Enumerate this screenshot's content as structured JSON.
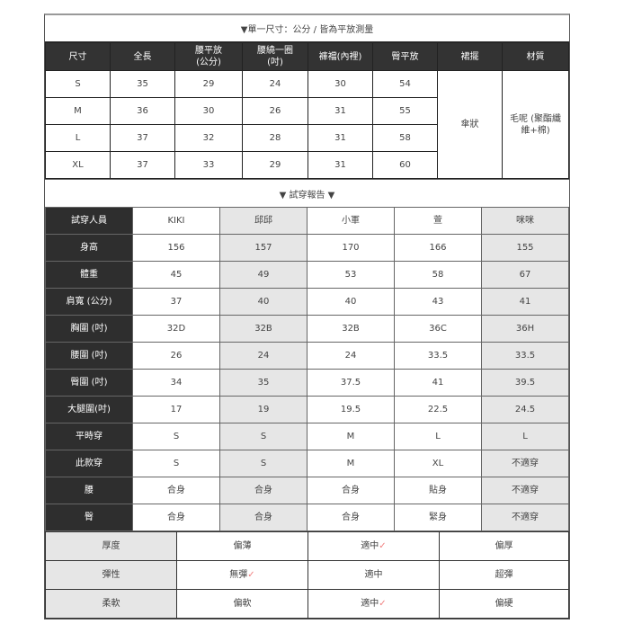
{
  "size_table": {
    "title": "▼單一尺寸：公分 / 皆為平放測量",
    "headers": [
      "尺寸",
      "全長",
      "腰平放\n(公分)",
      "腰繞一圈\n(吋)",
      "褲襠(內裡)",
      "臀平放",
      "裙擺",
      "材質"
    ],
    "rows": [
      [
        "S",
        "35",
        "29",
        "24",
        "30",
        "54"
      ],
      [
        "M",
        "36",
        "30",
        "26",
        "31",
        "55"
      ],
      [
        "L",
        "37",
        "32",
        "28",
        "31",
        "58"
      ],
      [
        "XL",
        "37",
        "33",
        "29",
        "31",
        "60"
      ]
    ],
    "hem": "傘狀",
    "material": "毛呢 (聚酯纖維+棉)"
  },
  "fitting": {
    "title": "▼ 試穿報告 ▼",
    "header_label": "試穿人員",
    "people": [
      "KIKI",
      "邱邱",
      "小軍",
      "萱",
      "咪咪"
    ],
    "rows": [
      {
        "label": "身高",
        "values": [
          "156",
          "157",
          "170",
          "166",
          "155"
        ]
      },
      {
        "label": "體重",
        "values": [
          "45",
          "49",
          "53",
          "58",
          "67"
        ]
      },
      {
        "label": "肩寬 (公分)",
        "values": [
          "37",
          "40",
          "40",
          "43",
          "41"
        ]
      },
      {
        "label": "胸圍 (吋)",
        "values": [
          "32D",
          "32B",
          "32B",
          "36C",
          "36H"
        ]
      },
      {
        "label": "腰圍 (吋)",
        "values": [
          "26",
          "24",
          "24",
          "33.5",
          "33.5"
        ]
      },
      {
        "label": "臀圍 (吋)",
        "values": [
          "34",
          "35",
          "37.5",
          "41",
          "39.5"
        ]
      },
      {
        "label": "大腿圍(吋)",
        "values": [
          "17",
          "19",
          "19.5",
          "22.5",
          "24.5"
        ]
      },
      {
        "label": "平時穿",
        "values": [
          "S",
          "S",
          "M",
          "L",
          "L"
        ]
      },
      {
        "label": "此款穿",
        "values": [
          "S",
          "S",
          "M",
          "XL",
          "不適穿"
        ]
      },
      {
        "label": "腰",
        "values": [
          "合身",
          "合身",
          "合身",
          "貼身",
          "不適穿"
        ]
      },
      {
        "label": "臀",
        "values": [
          "合身",
          "合身",
          "合身",
          "緊身",
          "不適穿"
        ]
      }
    ]
  },
  "fabric": {
    "check_mark": "✓",
    "check_color": "#f08080",
    "rows": [
      {
        "label": "厚度",
        "options": [
          "偏薄",
          "適中",
          "偏厚"
        ],
        "selected": 1
      },
      {
        "label": "彈性",
        "options": [
          "無彈",
          "適中",
          "超彈"
        ],
        "selected": 0
      },
      {
        "label": "柔軟",
        "options": [
          "偏軟",
          "適中",
          "偏硬"
        ],
        "selected": 1
      }
    ]
  }
}
